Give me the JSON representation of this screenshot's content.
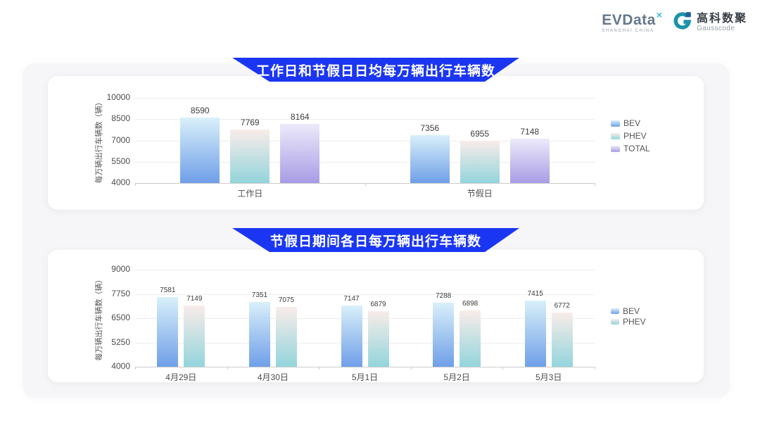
{
  "header": {
    "evdata": {
      "text": "EVData",
      "mark": "×",
      "subtext": "SHANGHAI CHINA"
    },
    "gausscode": {
      "cn": "高科数聚",
      "en": "Gausscode"
    }
  },
  "colors": {
    "banner": "#1b36f2",
    "panel_bg": "#f6f6f8",
    "card_bg": "#ffffff",
    "grid_line": "#ededed",
    "axis_line": "#cccccc",
    "tick_text": "#4d4d4d",
    "value_text": "#3c3c3c",
    "legend_text": "#555555",
    "evdata_text": "#64788c",
    "evdata_mark": "#35b9e9",
    "gausscode_teal": "#1a93a9",
    "gausscode_blue": "#1e5f97",
    "series": {
      "BEV": {
        "top": "#d9f0fa",
        "bottom": "#6f9fe8"
      },
      "PHEV": {
        "top": "#f9ece9",
        "bottom": "#93d5dc"
      },
      "TOTAL": {
        "top": "#edeafb",
        "bottom": "#a89ce4"
      }
    }
  },
  "chart_data": [
    {
      "type": "bar",
      "title": "工作日和节假日日均每万辆出行车辆数",
      "ylabel": "每万辆出行车辆数（辆）",
      "xlabel": "",
      "ylim": [
        4000,
        10000
      ],
      "yticks": [
        4000,
        5500,
        7000,
        8500,
        10000
      ],
      "categories": [
        "工作日",
        "节假日"
      ],
      "series": [
        {
          "name": "BEV",
          "values": [
            8590,
            7356
          ]
        },
        {
          "name": "PHEV",
          "values": [
            7769,
            6955
          ]
        },
        {
          "name": "TOTAL",
          "values": [
            8164,
            7148
          ]
        }
      ],
      "legend": [
        "BEV",
        "PHEV",
        "TOTAL"
      ],
      "legend_position": "right",
      "grid": true,
      "data_labels": true
    },
    {
      "type": "bar",
      "title": "节假日期间各日每万辆出行车辆数",
      "ylabel": "每万辆出行车辆数（辆）",
      "xlabel": "",
      "ylim": [
        4000,
        9000
      ],
      "yticks": [
        4000,
        5250,
        6500,
        7750,
        9000
      ],
      "categories": [
        "4月29日",
        "4月30日",
        "5月1日",
        "5月2日",
        "5月3日"
      ],
      "series": [
        {
          "name": "BEV",
          "values": [
            7581,
            7351,
            7147,
            7288,
            7415
          ]
        },
        {
          "name": "PHEV",
          "values": [
            7149,
            7075,
            6879,
            6898,
            6772
          ]
        }
      ],
      "legend": [
        "BEV",
        "PHEV"
      ],
      "legend_position": "right",
      "grid": true,
      "data_labels": true
    }
  ]
}
